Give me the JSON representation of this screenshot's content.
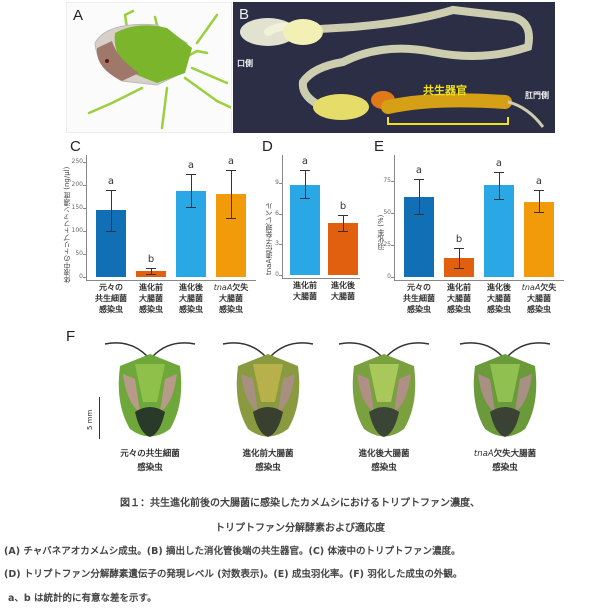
{
  "panels": {
    "A": {
      "letter": "A",
      "description": "チャバネアオカメムシ成虫"
    },
    "B": {
      "letter": "B",
      "label_mouth": "口側",
      "label_anus": "肛門側",
      "label_organ": "共生器官"
    },
    "C": {
      "letter": "C"
    },
    "D": {
      "letter": "D"
    },
    "E": {
      "letter": "E"
    },
    "F": {
      "letter": "F",
      "scale": "5 mm",
      "labels": [
        {
          "line1": "元々の共生細菌",
          "line2": "感染虫"
        },
        {
          "line1": "進化前大腸菌",
          "line2": "感染虫"
        },
        {
          "line1": "進化後大腸菌",
          "line2": "感染虫"
        },
        {
          "line1_italic": "tnaA",
          "line1": "欠失大腸菌",
          "line2": "感染虫"
        }
      ]
    }
  },
  "chart_data": [
    {
      "panel": "C",
      "type": "bar",
      "ylabel": "体液中のトリプトファン濃度 (ng/μl)",
      "ylim": [
        0,
        250
      ],
      "yticks": [
        "0",
        "50",
        "100",
        "150",
        "200",
        "250"
      ],
      "categories": [
        {
          "l1": "元々の",
          "l2": "共生細菌",
          "l3": "感染虫"
        },
        {
          "l1": "進化前",
          "l2": "大腸菌",
          "l3": "感染虫"
        },
        {
          "l1": "進化後",
          "l2": "大腸菌",
          "l3": "感染虫"
        },
        {
          "l1_italic": "tnaA",
          "l1": "欠失",
          "l2": "大腸菌",
          "l3": "感染虫"
        }
      ],
      "values": [
        145,
        12,
        187,
        181
      ],
      "err_low": [
        101,
        7,
        152,
        128
      ],
      "err_high": [
        190,
        20,
        223,
        232
      ],
      "significance": [
        "a",
        "b",
        "a",
        "a"
      ],
      "colors": [
        "#1170b5",
        "#e0600f",
        "#2aa8e6",
        "#f19a0a"
      ]
    },
    {
      "panel": "D",
      "type": "bar",
      "ylabel": "tnaA遺伝子発現レベル",
      "ylim": [
        0,
        10.5
      ],
      "yticks": [
        "0",
        "3",
        "6",
        "9"
      ],
      "categories": [
        {
          "l1": "進化前",
          "l2": "大腸菌"
        },
        {
          "l1": "進化後",
          "l2": "大腸菌"
        }
      ],
      "values": [
        8.8,
        5.1
      ],
      "err_low": [
        7.6,
        4.3
      ],
      "err_high": [
        10.3,
        5.9
      ],
      "significance": [
        "a",
        "b"
      ],
      "colors": [
        "#2aa8e6",
        "#e0600f"
      ]
    },
    {
      "panel": "E",
      "type": "bar",
      "ylabel": "羽化率 (%)",
      "ylim": [
        0,
        90
      ],
      "yticks": [
        "0",
        "25",
        "50",
        "75"
      ],
      "categories": [
        {
          "l1": "元々の",
          "l2": "共生細菌",
          "l3": "感染虫"
        },
        {
          "l1": "進化前",
          "l2": "大腸菌",
          "l3": "感染虫"
        },
        {
          "l1": "進化後",
          "l2": "大腸菌",
          "l3": "感染虫"
        },
        {
          "l1_italic": "tnaA",
          "l1": "欠失",
          "l2": "大腸菌",
          "l3": "感染虫"
        }
      ],
      "values": [
        63,
        15,
        72,
        59
      ],
      "err_low": [
        49,
        7,
        61,
        51
      ],
      "err_high": [
        77,
        23,
        82,
        68
      ],
      "significance": [
        "a",
        "b",
        "a",
        "a"
      ],
      "colors": [
        "#1170b5",
        "#e0600f",
        "#2aa8e6",
        "#f19a0a"
      ]
    }
  ],
  "caption": {
    "title_line1": "図１：共生進化前後の大腸菌に感染したカメムシにおけるトリプトファン濃度、",
    "title_line2": "トリプトファン分解酵素および適応度",
    "legend_line1": "(A) チャバネアオカメムシ成虫。(B) 摘出した消化管後端の共生器官。(C) 体液中のトリプトファン濃度。",
    "legend_line2": "(D) トリプトファン分解酵素遺伝子の発現レベル (対数表示)。(E) 成虫羽化率。(F) 羽化した成虫の外観。",
    "legend_line3": "a、b は統計的に有意な差を示す。"
  }
}
